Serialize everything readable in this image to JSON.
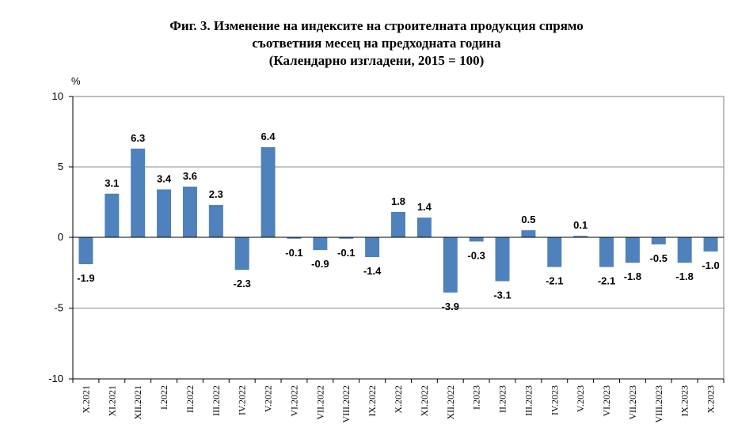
{
  "chart_data": {
    "type": "bar",
    "title_lines": [
      "Фиг. 3. Изменение на индексите на строителната продукция спрямо",
      "съответния месец на предходната година",
      "(Календарно изгладени, 2015 = 100)"
    ],
    "ylabel": "%",
    "ylim": [
      -10,
      10
    ],
    "yticks": [
      10,
      5,
      0,
      -5,
      -10
    ],
    "ytick_labels": [
      "10",
      "5",
      "0",
      "-5",
      "-10"
    ],
    "grid": true,
    "bar_color": "#4f81bd",
    "categories": [
      "X.2021",
      "XI.2021",
      "XII.2021",
      "I.2022",
      "II.2022",
      "III.2022",
      "IV.2022",
      "V.2022",
      "VI.2022",
      "VII.2022",
      "VIII.2022",
      "IX.2022",
      "X.2022",
      "XI.2022",
      "XII.2022",
      "I.2023",
      "II.2023",
      "III.2023",
      "IV.2023",
      "V.2023",
      "VI.2023",
      "VII.2023",
      "VIII.2023",
      "IX.2023",
      "X.2023"
    ],
    "values": [
      -1.9,
      3.1,
      6.3,
      3.4,
      3.6,
      2.3,
      -2.3,
      6.4,
      -0.1,
      -0.9,
      -0.1,
      -1.4,
      1.8,
      1.4,
      -3.9,
      -0.3,
      -3.1,
      0.5,
      -2.1,
      0.1,
      -2.1,
      -1.8,
      -0.5,
      -1.8,
      -1.0
    ],
    "value_labels": [
      "-1.9",
      "3.1",
      "6.3",
      "3.4",
      "3.6",
      "2.3",
      "-2.3",
      "6.4",
      "-0.1",
      "-0.9",
      "-0.1",
      "-1.4",
      "1.8",
      "1.4",
      "-3.9",
      "-0.3",
      "-3.1",
      "0.5",
      "-2.1",
      "0.1",
      "-2.1",
      "-1.8",
      "-0.5",
      "-1.8",
      "-1.0"
    ]
  }
}
